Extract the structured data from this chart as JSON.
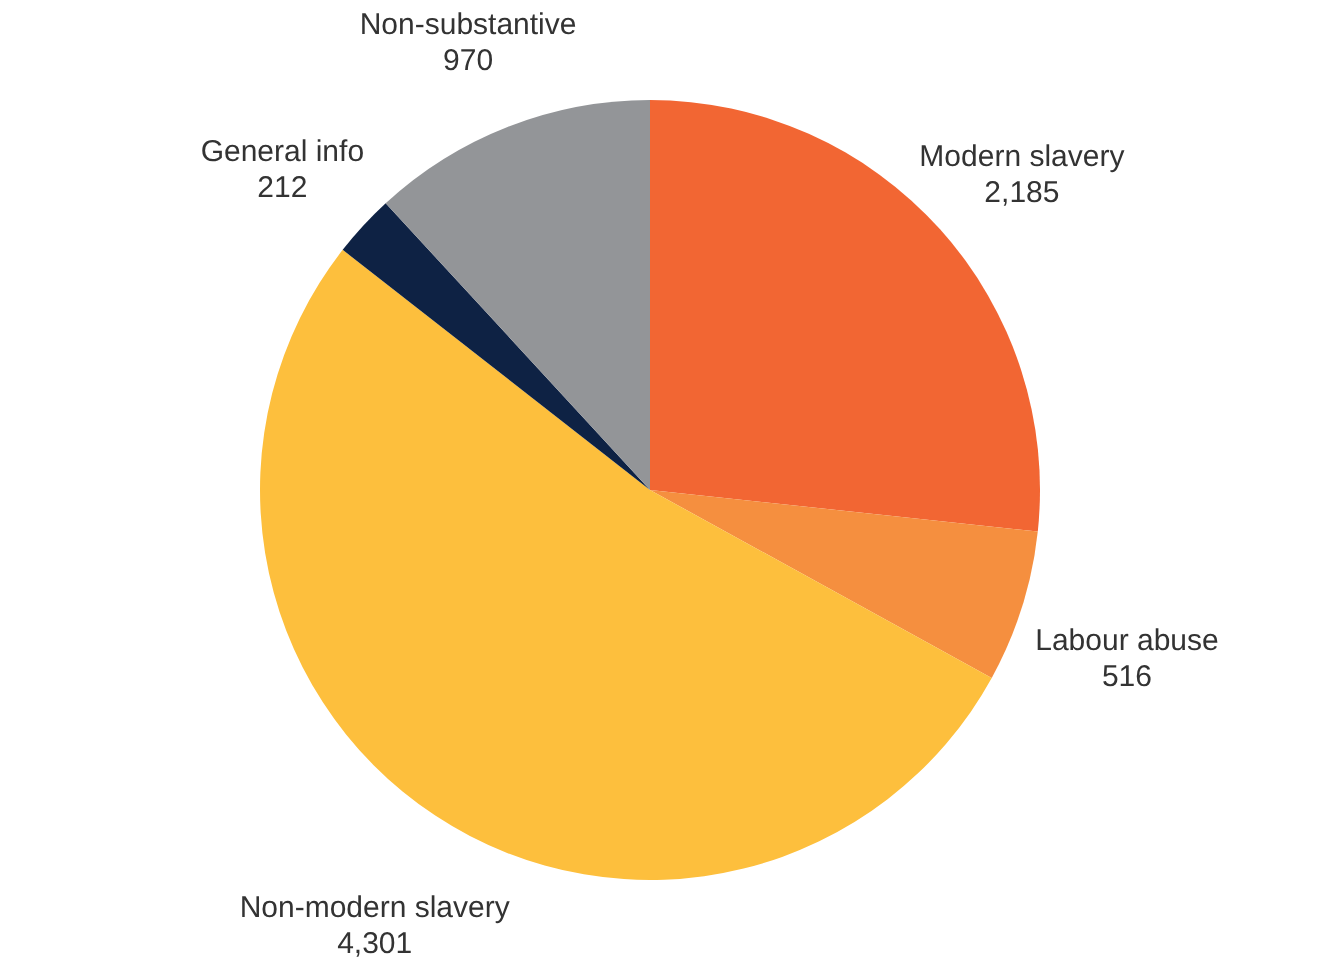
{
  "chart_data": {
    "type": "pie",
    "categories": [
      "Modern slavery",
      "Labour abuse",
      "Non-modern slavery",
      "General info",
      "Non-substantive"
    ],
    "values": [
      2185,
      516,
      4301,
      212,
      970
    ],
    "colors": [
      "#f26633",
      "#f58f3f",
      "#fdbf3d",
      "#0e2244",
      "#939598"
    ],
    "value_labels": [
      "2,185",
      "516",
      "4,301",
      "212",
      "970"
    ],
    "legend": false
  }
}
